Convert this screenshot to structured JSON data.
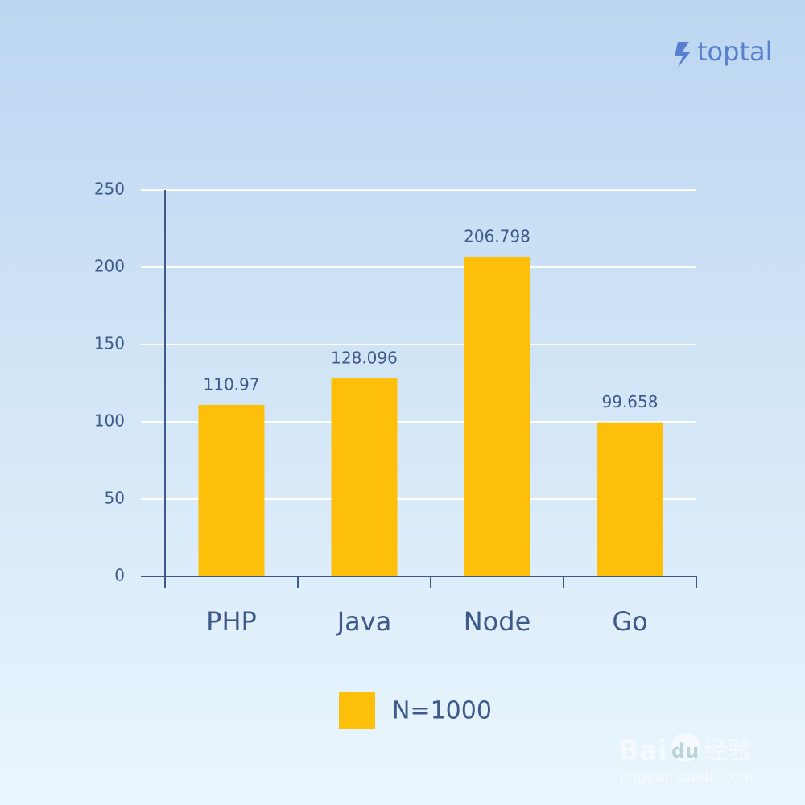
{
  "brand": "toptal",
  "watermark": [
    "Bai",
    "du",
    "经验",
    "jingyan.baidu.com"
  ],
  "chart_data": {
    "type": "bar",
    "categories": [
      "PHP",
      "Java",
      "Node",
      "Go"
    ],
    "series": [
      {
        "name": "N=1000",
        "color": "#fdbf0a",
        "values": [
          110.97,
          128.096,
          206.798,
          99.658
        ]
      }
    ],
    "ylim": [
      0,
      250
    ],
    "yticks": [
      0,
      50,
      100,
      150,
      200,
      250
    ],
    "grid": true,
    "legend": "bottom"
  }
}
